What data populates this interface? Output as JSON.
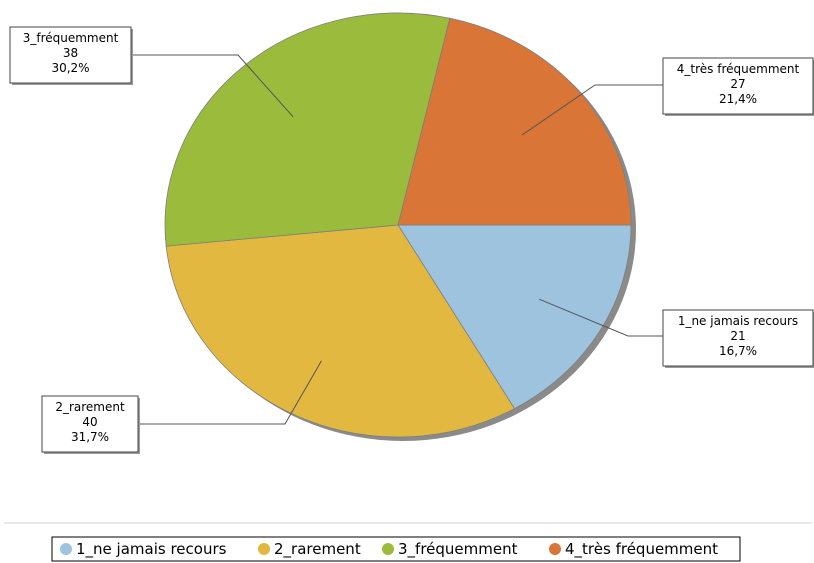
{
  "chart_data": {
    "type": "pie",
    "slices": [
      {
        "label": "1_ne jamais recours",
        "value": 21,
        "percent": "16,7%",
        "color": "#9ec3de"
      },
      {
        "label": "2_rarement",
        "value": 40,
        "percent": "31,7%",
        "color": "#e2b840"
      },
      {
        "label": "3_fréquemment",
        "value": 38,
        "percent": "30,2%",
        "color": "#9bbb3c"
      },
      {
        "label": "4_très fréquemment",
        "value": 27,
        "percent": "21,4%",
        "color": "#d97536"
      }
    ],
    "legend": {
      "placement": "bottom",
      "items": [
        "1_ne jamais recours",
        "2_rarement",
        "3_fréquemment",
        "4_très fréquemment"
      ]
    },
    "title": "",
    "shadow": true
  }
}
